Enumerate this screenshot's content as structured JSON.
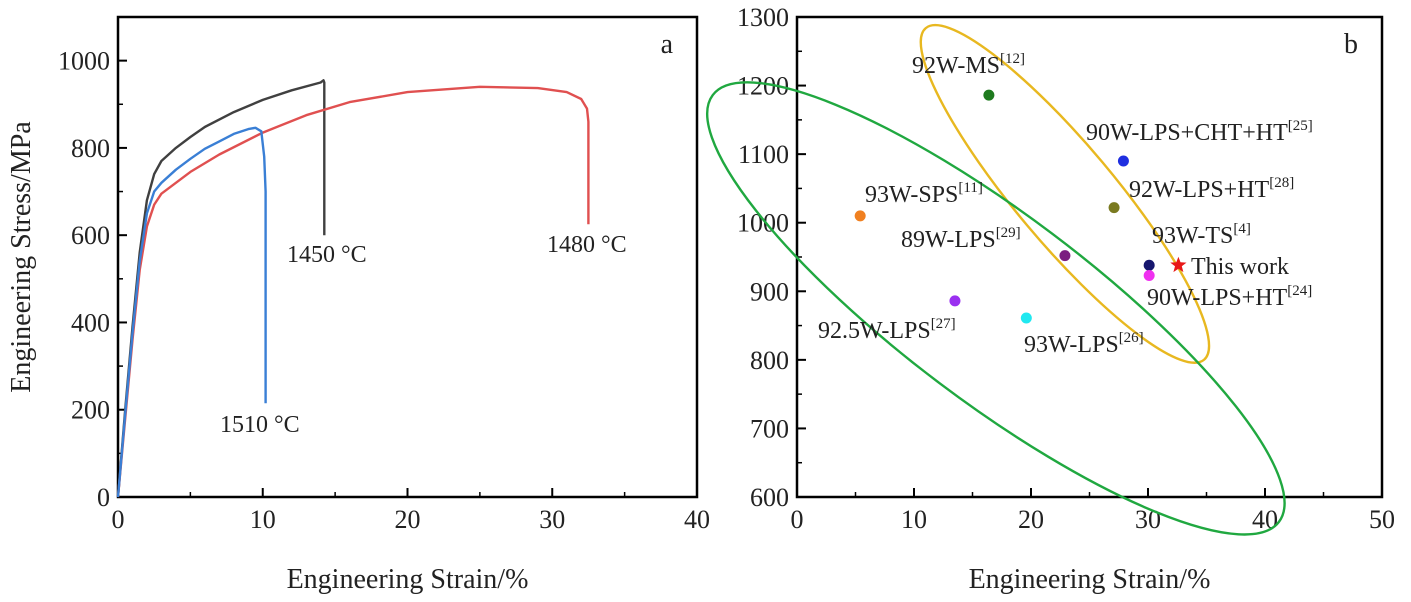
{
  "chart_data": [
    {
      "panel": "a",
      "type": "line",
      "xlabel": "Engineering Strain/%",
      "ylabel": "Engineering Stress/MPa",
      "xlim": [
        0,
        40
      ],
      "ylim": [
        0,
        1100
      ],
      "xticks": [
        0,
        10,
        20,
        30,
        40
      ],
      "yticks": [
        0,
        200,
        400,
        600,
        800,
        1000
      ],
      "grid": false,
      "series": [
        {
          "name": "1450 °C",
          "color": "#404040",
          "points": [
            [
              0,
              0
            ],
            [
              0.5,
              200
            ],
            [
              1,
              390
            ],
            [
              1.5,
              560
            ],
            [
              2,
              680
            ],
            [
              2.5,
              740
            ],
            [
              3,
              770
            ],
            [
              4,
              800
            ],
            [
              5,
              825
            ],
            [
              6,
              848
            ],
            [
              8,
              882
            ],
            [
              10,
              910
            ],
            [
              12,
              932
            ],
            [
              14,
              950
            ],
            [
              14.2,
              955
            ],
            [
              14.25,
              950
            ],
            [
              14.25,
              600
            ]
          ]
        },
        {
          "name": "1480 °C",
          "color": "#e05050",
          "points": [
            [
              0,
              0
            ],
            [
              0.5,
              180
            ],
            [
              1,
              360
            ],
            [
              1.5,
              520
            ],
            [
              2,
              620
            ],
            [
              2.5,
              670
            ],
            [
              3,
              695
            ],
            [
              4,
              720
            ],
            [
              5,
              745
            ],
            [
              7,
              785
            ],
            [
              10,
              835
            ],
            [
              13,
              875
            ],
            [
              16,
              905
            ],
            [
              20,
              928
            ],
            [
              25,
              940
            ],
            [
              29,
              937
            ],
            [
              31,
              928
            ],
            [
              32,
              912
            ],
            [
              32.4,
              890
            ],
            [
              32.5,
              860
            ],
            [
              32.5,
              625
            ]
          ]
        },
        {
          "name": "1510 °C",
          "color": "#3a7fd5",
          "points": [
            [
              0,
              0
            ],
            [
              0.5,
              190
            ],
            [
              1,
              375
            ],
            [
              1.5,
              540
            ],
            [
              2,
              650
            ],
            [
              2.5,
              700
            ],
            [
              3,
              720
            ],
            [
              4,
              750
            ],
            [
              5,
              775
            ],
            [
              6,
              798
            ],
            [
              7,
              815
            ],
            [
              8,
              832
            ],
            [
              9,
              843
            ],
            [
              9.5,
              846
            ],
            [
              9.9,
              838
            ],
            [
              10.1,
              780
            ],
            [
              10.2,
              700
            ],
            [
              10.2,
              215
            ]
          ]
        }
      ]
    },
    {
      "panel": "b",
      "type": "scatter",
      "xlabel": "Engineering Strain/%",
      "ylabel": "",
      "xlim": [
        0,
        50
      ],
      "ylim": [
        600,
        1300
      ],
      "xticks": [
        0,
        10,
        20,
        30,
        40,
        50
      ],
      "yticks": [
        600,
        700,
        800,
        900,
        1000,
        1100,
        1200,
        1300
      ],
      "grid": false,
      "points": [
        {
          "label": "92W-MS",
          "ref": "[12]",
          "x": 16.4,
          "y": 1186,
          "color": "#1e7a1e",
          "marker": "circle"
        },
        {
          "label": "90W-LPS+CHT+HT",
          "ref": "[25]",
          "x": 27.9,
          "y": 1090,
          "color": "#1f2fe0",
          "marker": "circle"
        },
        {
          "label": "92W-LPS+HT",
          "ref": "[28]",
          "x": 27.1,
          "y": 1022,
          "color": "#7a7a20",
          "marker": "circle"
        },
        {
          "label": "93W-SPS",
          "ref": "[11]",
          "x": 5.4,
          "y": 1010,
          "color": "#f08020",
          "marker": "circle"
        },
        {
          "label": "89W-LPS",
          "ref": "[29]",
          "x": 22.9,
          "y": 952,
          "color": "#7a1e80",
          "marker": "circle"
        },
        {
          "label": "93W-TS",
          "ref": "[4]",
          "x": 30.1,
          "y": 938,
          "color": "#16166e",
          "marker": "circle"
        },
        {
          "label": "This work",
          "ref": "",
          "x": 32.6,
          "y": 938,
          "color": "#e81818",
          "marker": "star"
        },
        {
          "label": "90W-LPS+HT",
          "ref": "[24]",
          "x": 30.1,
          "y": 923,
          "color": "#f030f0",
          "marker": "circle"
        },
        {
          "label": "92.5W-LPS",
          "ref": "[27]",
          "x": 13.5,
          "y": 886,
          "color": "#9a30f0",
          "marker": "circle"
        },
        {
          "label": "93W-LPS",
          "ref": "[26]",
          "x": 19.6,
          "y": 861,
          "color": "#20e8f0",
          "marker": "circle"
        }
      ],
      "groups": [
        {
          "color": "#e8b820",
          "cx": 22.9,
          "cy": 1042,
          "rx": 18.5,
          "ry": 4.2,
          "angle_deg": 50
        },
        {
          "color": "#20a840",
          "cx": 17.0,
          "cy": 875,
          "rx": 30.3,
          "ry": 8.0,
          "angle_deg": 37
        }
      ]
    }
  ]
}
